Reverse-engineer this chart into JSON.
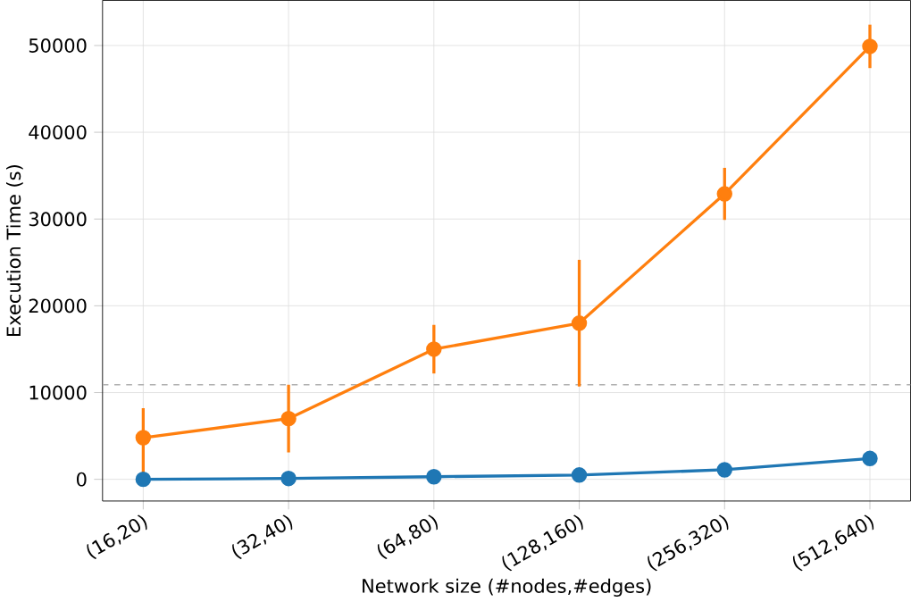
{
  "chart_data": {
    "type": "line",
    "xlabel": "Network size (#nodes,#edges)",
    "ylabel": "Execution Time (s)",
    "categories": [
      "(16,20)",
      "(32,40)",
      "(64,80)",
      "(128,160)",
      "(256,320)",
      "(512,640)"
    ],
    "series": [
      {
        "color": "#1f77b4",
        "values": [
          0,
          100,
          300,
          500,
          1100,
          2400
        ]
      },
      {
        "color": "#ff7f0e",
        "values": [
          4800,
          7000,
          15000,
          18000,
          32900,
          49900
        ],
        "errors": [
          [
            100,
            8200
          ],
          3900,
          2800,
          7300,
          3000,
          2500
        ]
      }
    ],
    "ylim": [
      -2500,
      55200
    ],
    "yticks": [
      0,
      10000,
      20000,
      30000,
      40000,
      50000
    ],
    "ref_lines": [
      {
        "axis": "y",
        "value": 10900,
        "color": "#b0b0b0",
        "line_style": "dashed"
      }
    ],
    "grid": true,
    "marker": "circle",
    "line_style": "solid"
  }
}
